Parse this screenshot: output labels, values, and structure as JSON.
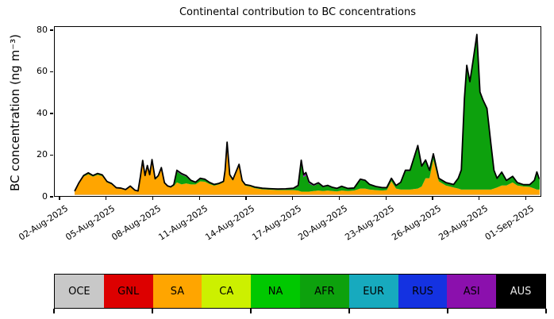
{
  "title": "Continental contribution to BC concentrations",
  "ylabel": "BC concentration (ng m⁻³)",
  "axes": {
    "yticks": [
      0,
      20,
      40,
      60,
      80
    ],
    "xticks": [
      "02-Aug-2025",
      "05-Aug-2025",
      "08-Aug-2025",
      "11-Aug-2025",
      "14-Aug-2025",
      "17-Aug-2025",
      "20-Aug-2025",
      "23-Aug-2025",
      "26-Aug-2025",
      "29-Aug-2025",
      "01-Sep-2025"
    ]
  },
  "legend": {
    "items": [
      {
        "label": "OCE",
        "color": "#c8c8c8",
        "text_color": "#000000"
      },
      {
        "label": "GNL",
        "color": "#dd0000",
        "text_color": "#000000"
      },
      {
        "label": "SA",
        "color": "#ffa500",
        "text_color": "#000000"
      },
      {
        "label": "CA",
        "color": "#ccf000",
        "text_color": "#000000"
      },
      {
        "label": "NA",
        "color": "#00c800",
        "text_color": "#000000"
      },
      {
        "label": "AFR",
        "color": "#0da10d",
        "text_color": "#000000"
      },
      {
        "label": "EUR",
        "color": "#17aabe",
        "text_color": "#000000"
      },
      {
        "label": "RUS",
        "color": "#1432e1",
        "text_color": "#000000"
      },
      {
        "label": "ASI",
        "color": "#8b10ad",
        "text_color": "#000000"
      },
      {
        "label": "AUS",
        "color": "#000000",
        "text_color": "#e8e8e8"
      }
    ],
    "tick_every": 2
  },
  "chart_data": {
    "type": "area",
    "stacked": true,
    "title": "Continental contribution to BC concentrations",
    "xlabel": "",
    "ylabel": "BC concentration (ng m⁻³)",
    "x_unit": "days since 01-Aug-2025 00:00",
    "xlim": [
      0.64,
      32.0
    ],
    "ylim": [
      0,
      81.9
    ],
    "outline_color": "#000000",
    "x": [
      1.92,
      2.2,
      2.5,
      2.8,
      3.1,
      3.4,
      3.7,
      4.0,
      4.3,
      4.6,
      4.9,
      5.2,
      5.5,
      5.8,
      6.0,
      6.15,
      6.3,
      6.45,
      6.6,
      6.75,
      6.9,
      7.1,
      7.3,
      7.5,
      7.7,
      7.9,
      8.1,
      8.3,
      8.5,
      8.8,
      9.1,
      9.4,
      9.7,
      10.0,
      10.3,
      10.6,
      10.9,
      11.2,
      11.5,
      11.6,
      11.73,
      11.9,
      12.1,
      12.5,
      12.7,
      12.9,
      13.2,
      13.5,
      14.0,
      14.5,
      15.0,
      15.5,
      16.0,
      16.3,
      16.5,
      16.65,
      16.8,
      17.0,
      17.3,
      17.6,
      17.9,
      18.2,
      18.5,
      18.8,
      19.1,
      19.5,
      19.9,
      20.3,
      20.6,
      20.9,
      21.3,
      21.7,
      22.0,
      22.3,
      22.6,
      22.9,
      23.2,
      23.5,
      24.0,
      24.25,
      24.5,
      24.75,
      25.0,
      25.35,
      25.8,
      26.3,
      26.6,
      26.8,
      27.0,
      27.15,
      27.35,
      27.55,
      27.8,
      28.0,
      28.2,
      28.45,
      28.7,
      28.9,
      29.1,
      29.4,
      29.7,
      30.1,
      30.4,
      30.8,
      31.2,
      31.5,
      31.66,
      31.8,
      31.92
    ],
    "series": [
      {
        "name": "OCE",
        "color": "#c8c8c8",
        "constant": 0.25
      },
      {
        "name": "SA",
        "color": "#ffa500",
        "values": [
          1.5,
          5.5,
          8.8,
          10.0,
          8.8,
          9.7,
          9.0,
          6.0,
          5.0,
          3.2,
          3.0,
          2.3,
          3.9,
          2.0,
          1.6,
          8.3,
          16.0,
          8.8,
          13.5,
          9.2,
          16.3,
          7.3,
          8.7,
          12.5,
          5.4,
          4.0,
          3.5,
          4.2,
          6.0,
          5.0,
          5.5,
          5.0,
          5.0,
          6.5,
          6.3,
          5.2,
          4.4,
          5.0,
          6.0,
          11.0,
          24.8,
          9.0,
          6.8,
          14.0,
          6.3,
          4.4,
          4.0,
          3.2,
          2.6,
          2.4,
          2.2,
          2.2,
          2.2,
          2.0,
          1.5,
          1.5,
          1.5,
          1.5,
          1.8,
          2.0,
          1.8,
          2.0,
          1.8,
          1.6,
          2.0,
          1.8,
          2.0,
          3.0,
          3.0,
          2.5,
          2.2,
          2.0,
          2.2,
          6.5,
          3.0,
          2.5,
          2.5,
          2.5,
          3.0,
          4.0,
          8.0,
          8.0,
          17.0,
          6.5,
          4.5,
          3.5,
          3.0,
          2.5,
          2.5,
          2.5,
          2.5,
          2.5,
          2.5,
          2.5,
          2.5,
          2.5,
          2.5,
          3.0,
          3.5,
          4.5,
          4.5,
          6.0,
          4.5,
          4.0,
          3.8,
          3.0,
          2.5,
          2.5,
          2.5
        ]
      },
      {
        "name": "AFR",
        "color": "#0da10d",
        "values": [
          0.1,
          0.2,
          0.4,
          0.5,
          0.4,
          0.5,
          0.5,
          0.3,
          0.3,
          0.1,
          0.1,
          0.1,
          0.2,
          0.1,
          0.1,
          0.3,
          0.5,
          0.4,
          0.5,
          0.4,
          0.6,
          0.3,
          0.4,
          0.5,
          0.3,
          0.2,
          0.2,
          0.5,
          5.3,
          4.7,
          3.3,
          1.6,
          0.8,
          1.2,
          1.0,
          0.6,
          0.4,
          0.3,
          0.3,
          0.6,
          0.6,
          0.6,
          0.4,
          0.6,
          0.4,
          0.3,
          0.3,
          0.3,
          0.3,
          0.3,
          0.3,
          0.4,
          0.6,
          2.0,
          13.5,
          7.0,
          8.0,
          4.0,
          2.5,
          3.3,
          1.8,
          2.2,
          1.5,
          1.2,
          1.8,
          1.0,
          1.0,
          4.2,
          3.7,
          2.2,
          1.5,
          1.2,
          1.0,
          1.2,
          1.2,
          3.2,
          9.0,
          9.0,
          20.5,
          9.5,
          8.5,
          3.5,
          2.5,
          1.2,
          1.2,
          1.2,
          4.7,
          9.2,
          44.0,
          60.0,
          52.0,
          62.0,
          75.0,
          47.0,
          43.0,
          39.0,
          22.0,
          8.5,
          4.2,
          6.2,
          2.2,
          2.7,
          1.2,
          0.7,
          0.9,
          3.7,
          8.2,
          5.2,
          4.7
        ]
      },
      {
        "name": "ASI",
        "color": "#8b10ad",
        "values": [
          0.1,
          0.15,
          0.15,
          0.15,
          0.15,
          0.15,
          0.15,
          0.15,
          0.15,
          0.1,
          0.1,
          0.1,
          0.1,
          0.1,
          0.1,
          0.15,
          0.2,
          0.15,
          0.2,
          0.15,
          0.2,
          0.15,
          0.15,
          0.2,
          0.15,
          0.1,
          0.1,
          0.2,
          0.6,
          0.6,
          0.5,
          0.4,
          0.3,
          0.3,
          0.25,
          0.2,
          0.2,
          0.2,
          0.2,
          0.2,
          0.2,
          0.2,
          0.2,
          0.2,
          0.2,
          0.2,
          0.2,
          0.25,
          0.25,
          0.25,
          0.3,
          0.3,
          0.35,
          0.5,
          1.8,
          1.3,
          1.3,
          0.8,
          0.5,
          0.5,
          0.4,
          0.35,
          0.3,
          0.3,
          0.3,
          0.25,
          0.25,
          0.35,
          0.35,
          0.3,
          0.3,
          0.25,
          0.25,
          0.3,
          0.3,
          0.35,
          0.4,
          0.4,
          0.45,
          0.4,
          0.4,
          0.4,
          0.4,
          0.3,
          0.25,
          0.25,
          0.3,
          0.4,
          0.5,
          0.5,
          0.5,
          0.5,
          0.5,
          0.5,
          0.5,
          0.5,
          0.5,
          0.4,
          0.3,
          0.3,
          0.25,
          0.25,
          0.2,
          0.2,
          0.2,
          0.3,
          0.4,
          0.3,
          0.3
        ]
      }
    ]
  }
}
